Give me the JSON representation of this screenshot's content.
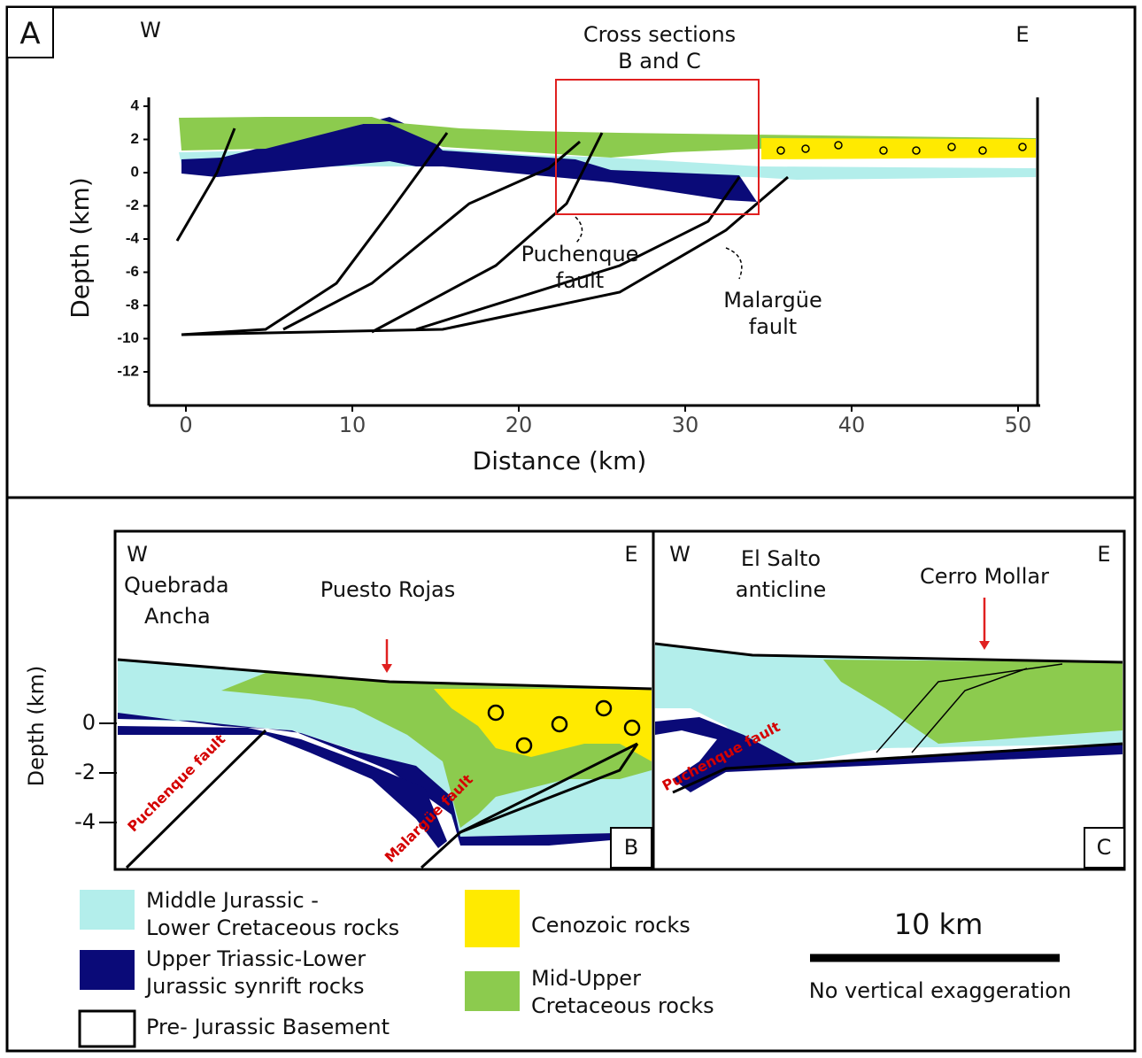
{
  "panel_a": {
    "label": "A",
    "west": "W",
    "east": "E",
    "inset_title": [
      "Cross sections",
      "B and C"
    ],
    "y_axis_label": "Depth (km)",
    "x_axis_label": "Distance (km)",
    "yticks": [
      4,
      2,
      0,
      -2,
      -4,
      -6,
      -8,
      -10,
      -12
    ],
    "xticks": [
      0,
      10,
      20,
      30,
      40,
      50
    ],
    "puchenque_label": [
      "Puchenque",
      "fault"
    ],
    "malargue_label": [
      "Malargüe",
      "fault"
    ]
  },
  "panel_b": {
    "label": "B",
    "west": "W",
    "east": "E",
    "place_west": [
      "Quebrada",
      "Ancha"
    ],
    "place": "Puesto Rojas",
    "y_axis_label": "Depth (km)",
    "yticks": [
      0,
      -2,
      -4
    ],
    "fault_1": "Puchenque fault",
    "fault_2": "Malargüe fault"
  },
  "panel_c": {
    "label": "C",
    "west": "W",
    "east": "E",
    "anticline": [
      "El Salto",
      "anticline"
    ],
    "place": "Cerro Mollar",
    "fault": "Puchenque fault"
  },
  "legend": {
    "items": [
      [
        "Middle Jurassic -",
        "Lower Cretaceous rocks"
      ],
      [
        "Upper Triassic-Lower",
        "Jurassic synrift rocks"
      ],
      [
        "Pre- Jurassic Basement"
      ],
      [
        "Cenozoic rocks"
      ],
      [
        "Mid-Upper",
        "Cretaceous rocks"
      ]
    ],
    "scale": "10 km",
    "note": "No vertical exaggeration"
  }
}
